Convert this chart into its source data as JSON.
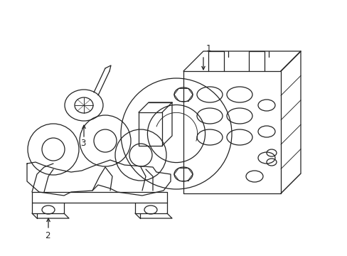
{
  "background_color": "#ffffff",
  "line_color": "#222222",
  "lw": 0.9,
  "tlw": 0.65,
  "label_fontsize": 8.5
}
